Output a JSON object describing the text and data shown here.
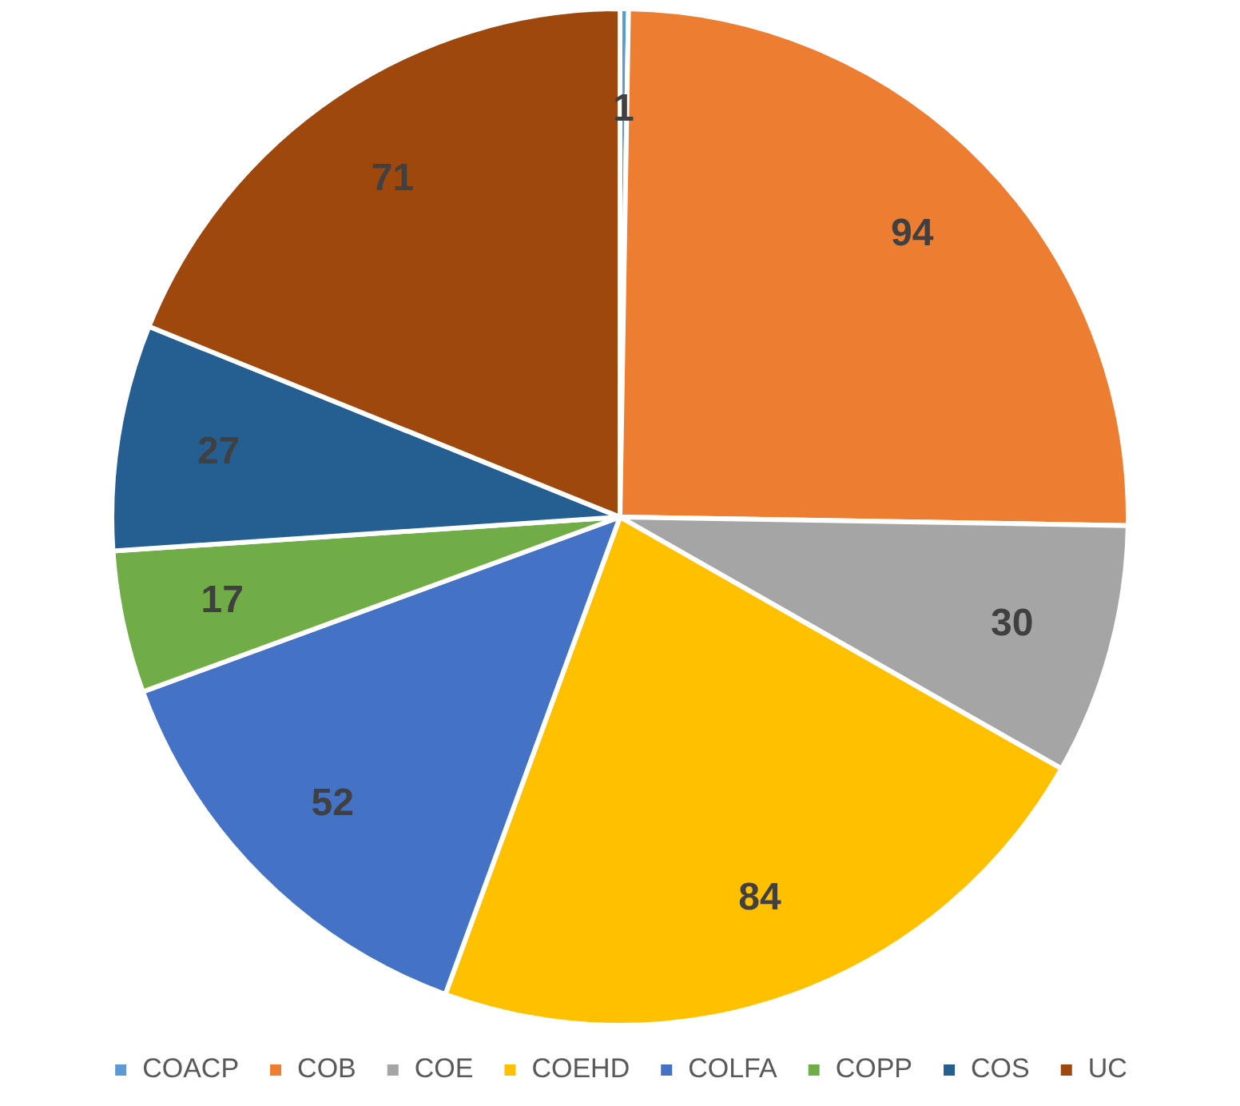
{
  "chart_data": {
    "type": "pie",
    "categories": [
      "COACP",
      "COB",
      "COE",
      "COEHD",
      "COLFA",
      "COPP",
      "COS",
      "UC"
    ],
    "values": [
      1,
      94,
      30,
      84,
      52,
      17,
      27,
      71
    ],
    "colors": [
      "#5b9bd5",
      "#ed7d31",
      "#a5a5a5",
      "#ffc000",
      "#4472c4",
      "#70ad47",
      "#255e91",
      "#9e480e"
    ],
    "data_labels": true,
    "legend": "bottom"
  }
}
